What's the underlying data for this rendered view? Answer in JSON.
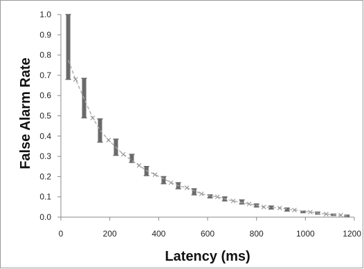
{
  "chart_data": {
    "type": "scatter",
    "title": "",
    "xlabel": "Latency (ms)",
    "ylabel": "False Alarm Rate",
    "xlim": [
      0,
      1200
    ],
    "ylim": [
      0,
      1.0
    ],
    "x_ticks": [
      "0",
      "200",
      "400",
      "600",
      "800",
      "1000",
      "1200"
    ],
    "y_ticks": [
      "0.0",
      "0.1",
      "0.2",
      "0.3",
      "0.4",
      "0.5",
      "0.6",
      "0.7",
      "0.8",
      "0.9",
      "1.0"
    ],
    "grid": false,
    "legend": "none",
    "colors": {
      "bars": "#6a6a6a",
      "markers": "#888888",
      "trend": "#aaaaaa",
      "axis": "#888888",
      "frame": "#999999"
    },
    "series": [
      {
        "kind": "range_bars",
        "x": [
          30,
          95,
          160,
          225,
          290,
          350,
          420,
          480,
          545,
          610,
          670,
          740,
          800,
          860,
          925,
          990,
          1050,
          1115,
          1170
        ],
        "low": [
          0.68,
          0.49,
          0.37,
          0.305,
          0.27,
          0.205,
          0.165,
          0.14,
          0.11,
          0.095,
          0.08,
          0.065,
          0.05,
          0.04,
          0.03,
          0.022,
          0.015,
          0.008,
          0.003
        ],
        "high": [
          1.0,
          0.685,
          0.485,
          0.385,
          0.31,
          0.25,
          0.2,
          0.17,
          0.14,
          0.11,
          0.1,
          0.085,
          0.065,
          0.055,
          0.045,
          0.03,
          0.025,
          0.015,
          0.01
        ]
      },
      {
        "kind": "markers",
        "x": [
          60,
          130,
          195,
          255,
          320,
          385,
          450,
          515,
          575,
          640,
          705,
          770,
          830,
          895,
          955,
          1020,
          1085,
          1145
        ],
        "y": [
          0.68,
          0.49,
          0.38,
          0.31,
          0.255,
          0.21,
          0.17,
          0.145,
          0.115,
          0.1,
          0.08,
          0.065,
          0.05,
          0.045,
          0.035,
          0.025,
          0.015,
          0.01
        ]
      },
      {
        "kind": "trendline",
        "x": [
          30,
          60,
          95,
          130,
          160,
          195,
          225,
          255,
          290,
          320,
          350,
          385,
          420,
          450,
          480,
          515,
          545,
          575,
          610,
          640,
          670,
          705,
          740,
          770,
          800,
          830,
          860,
          895,
          925,
          955,
          990,
          1020,
          1050,
          1085,
          1115,
          1145,
          1170
        ],
        "y": [
          0.775,
          0.68,
          0.585,
          0.49,
          0.43,
          0.38,
          0.345,
          0.31,
          0.28,
          0.255,
          0.23,
          0.21,
          0.19,
          0.17,
          0.155,
          0.145,
          0.13,
          0.115,
          0.105,
          0.1,
          0.09,
          0.08,
          0.072,
          0.065,
          0.058,
          0.05,
          0.048,
          0.045,
          0.04,
          0.035,
          0.03,
          0.025,
          0.02,
          0.015,
          0.012,
          0.01,
          0.005
        ]
      }
    ]
  }
}
